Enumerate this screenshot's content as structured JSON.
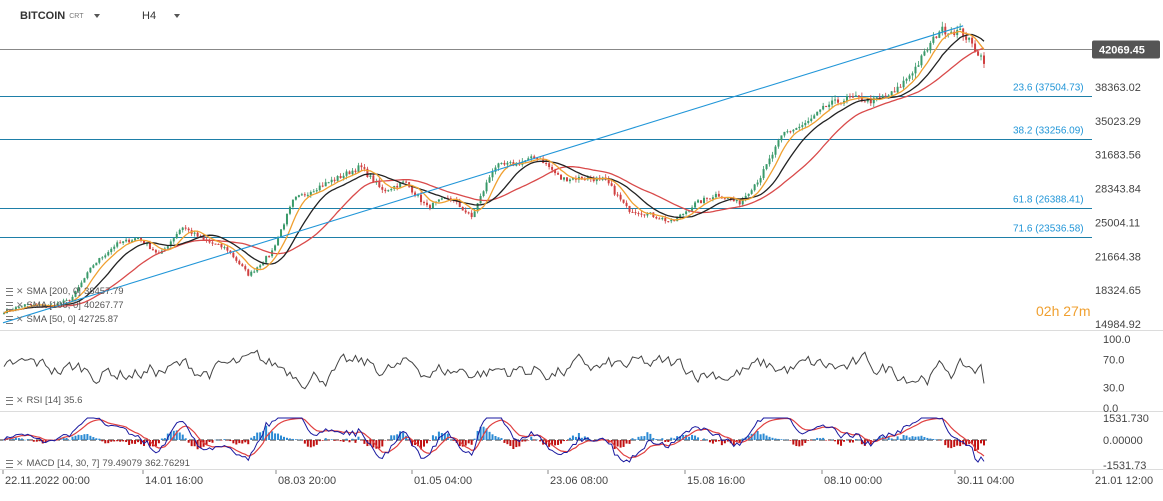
{
  "header": {
    "symbol": "BITCOIN",
    "symbol_sub": "CRT",
    "timeframe": "H4"
  },
  "current_price": "42069.45",
  "countdown": {
    "hours": "02",
    "h_unit": "h",
    "minutes": "27",
    "m_unit": "m"
  },
  "colors": {
    "candle_up": "#3a9a6a",
    "candle_down": "#d04040",
    "sma200": "#d94a4a",
    "sma100": "#222222",
    "sma50": "#f0a030",
    "trendline": "#2196d8",
    "fib_line": "#1e7fa8",
    "fib_label": "#2196d8",
    "price_badge": "#555555",
    "rsi_line": "#444444",
    "macd_line": "#1a1aa0",
    "signal_line": "#e04040",
    "hist_up": "#2a8ad4",
    "hist_down": "#c01010",
    "timer": "#f0a030"
  },
  "chart_data": {
    "type": "candlestick",
    "title": "BITCOIN",
    "timeframe": "H4",
    "price_axis_ticks": [
      "42069.45",
      "38363.02",
      "35023.29",
      "31683.56",
      "28343.84",
      "25004.11",
      "21664.38",
      "18324.65",
      "14984.92"
    ],
    "time_axis_ticks": [
      "22.11.2022  00:00",
      "14.01  16:00",
      "08.03  20:00",
      "01.05  04:00",
      "23.06  08:00",
      "15.08  16:00",
      "08.10  00:00",
      "30.11  04:00",
      "21.01  12:00"
    ],
    "ylim": [
      14984.92,
      45000
    ],
    "price_path": [
      [
        "22.11.2022",
        16200
      ],
      [
        "15.12.2022",
        16900
      ],
      [
        "01.01.2023",
        16700
      ],
      [
        "10.01",
        17400
      ],
      [
        "14.01",
        20800
      ],
      [
        "20.01",
        22800
      ],
      [
        "02.02",
        23500
      ],
      [
        "10.02",
        21800
      ],
      [
        "16.02",
        24600
      ],
      [
        "25.02",
        23200
      ],
      [
        "05.03",
        22400
      ],
      [
        "10.03",
        19800
      ],
      [
        "13.03",
        22000
      ],
      [
        "18.03",
        27200
      ],
      [
        "28.03",
        28400
      ],
      [
        "10.04",
        29400
      ],
      [
        "14.04",
        30500
      ],
      [
        "20.04",
        28100
      ],
      [
        "01.05",
        29000
      ],
      [
        "12.05",
        26500
      ],
      [
        "30.05",
        27500
      ],
      [
        "15.06",
        25500
      ],
      [
        "23.06",
        30500
      ],
      [
        "05.07",
        30800
      ],
      [
        "13.07",
        31500
      ],
      [
        "24.07",
        29300
      ],
      [
        "10.08",
        29400
      ],
      [
        "15.08",
        29200
      ],
      [
        "17.08",
        26300
      ],
      [
        "05.09",
        25800
      ],
      [
        "11.09",
        25000
      ],
      [
        "20.09",
        26800
      ],
      [
        "01.10",
        27800
      ],
      [
        "15.10",
        26900
      ],
      [
        "20.10",
        29600
      ],
      [
        "24.10",
        33800
      ],
      [
        "01.11",
        34700
      ],
      [
        "09.11",
        36600
      ],
      [
        "15.11",
        37300
      ],
      [
        "20.11",
        37000
      ],
      [
        "30.11",
        37800
      ],
      [
        "03.12",
        40500
      ],
      [
        "05.12",
        44000
      ],
      [
        "08.12",
        43800
      ],
      [
        "11.12",
        41000
      ]
    ],
    "series": [
      {
        "name": "SMA [200, 0]",
        "last": "38457.79"
      },
      {
        "name": "SMA [100, 0]",
        "last": "40267.77"
      },
      {
        "name": "SMA [50, 0]",
        "last": "42725.87"
      }
    ],
    "fibonacci_levels": [
      {
        "label": "23.6 (37504.73)",
        "value": 37504.73
      },
      {
        "label": "38.2 (33256.09)",
        "value": 33256.09
      },
      {
        "label": "61.8 (26388.41)",
        "value": 26388.41
      },
      {
        "label": "71.6 (23536.58)",
        "value": 23536.58
      }
    ],
    "trendline": [
      [
        "22.11.2022",
        15100
      ],
      [
        "05.12",
        44400
      ]
    ],
    "rsi": {
      "name": "RSI [14]",
      "last": "35.6",
      "axis_ticks": [
        "100.0",
        "70.0",
        "30.0",
        "0.0"
      ],
      "ylim": [
        0,
        100
      ]
    },
    "macd": {
      "name": "MACD [14, 30, 7]",
      "macd_last": "79.49079",
      "signal_last": "362.76291",
      "axis_ticks": [
        "1531.730",
        "0.00000",
        "-1531.73"
      ],
      "ylim": [
        -1531.73,
        1531.73
      ]
    }
  }
}
